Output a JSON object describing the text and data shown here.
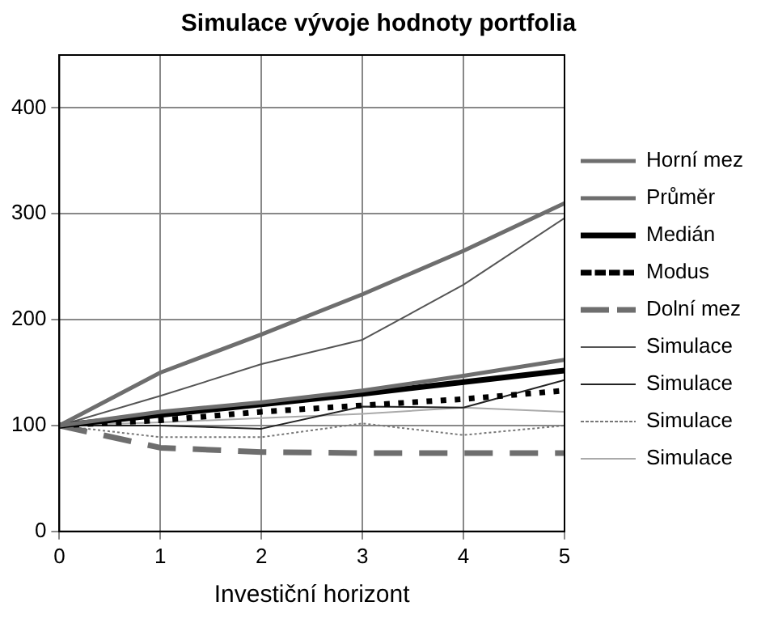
{
  "chart_data": {
    "type": "line",
    "title": "Simulace vývoje hodnoty portfolia",
    "xlabel": "Investiční horizont",
    "x": [
      0,
      1,
      2,
      3,
      4,
      5
    ],
    "xlim": [
      0,
      5
    ],
    "xticks": [
      0,
      1,
      2,
      3,
      4,
      5
    ],
    "ylim": [
      0,
      450
    ],
    "yticks": [
      0,
      100,
      200,
      300,
      400
    ],
    "grid": true,
    "legend": "right",
    "marker": "none",
    "series": [
      {
        "name": "Horní mez",
        "color": "#6e6e6e",
        "line_style": "solid",
        "values": [
          100,
          150,
          186,
          224,
          265,
          310
        ]
      },
      {
        "name": "Průměr",
        "color": "#6e6e6e",
        "line_style": "solid",
        "values": [
          100,
          113,
          122,
          133,
          147,
          162
        ]
      },
      {
        "name": "Medián",
        "color": "#000000",
        "line_style": "solid",
        "values": [
          100,
          110,
          120,
          130,
          141,
          152
        ]
      },
      {
        "name": "Modus",
        "color": "#000000",
        "line_style": "dotted",
        "values": [
          100,
          105,
          113,
          119,
          125,
          133
        ]
      },
      {
        "name": "Dolní mez",
        "color": "#6e6e6e",
        "line_style": "dashed",
        "values": [
          100,
          79,
          75,
          74,
          74,
          74
        ]
      },
      {
        "name": "Simulace",
        "color": "#555555",
        "line_style": "solid",
        "values": [
          100,
          128,
          158,
          181,
          233,
          296
        ]
      },
      {
        "name": "Simulace",
        "color": "#222222",
        "line_style": "solid",
        "values": [
          100,
          100,
          97,
          118,
          117,
          143
        ]
      },
      {
        "name": "Simulace",
        "color": "#777777",
        "line_style": "dotted",
        "values": [
          100,
          89,
          89,
          102,
          91,
          100
        ]
      },
      {
        "name": "Simulace",
        "color": "#aaaaaa",
        "line_style": "solid",
        "values": [
          100,
          103,
          107,
          111,
          117,
          113
        ]
      }
    ]
  }
}
